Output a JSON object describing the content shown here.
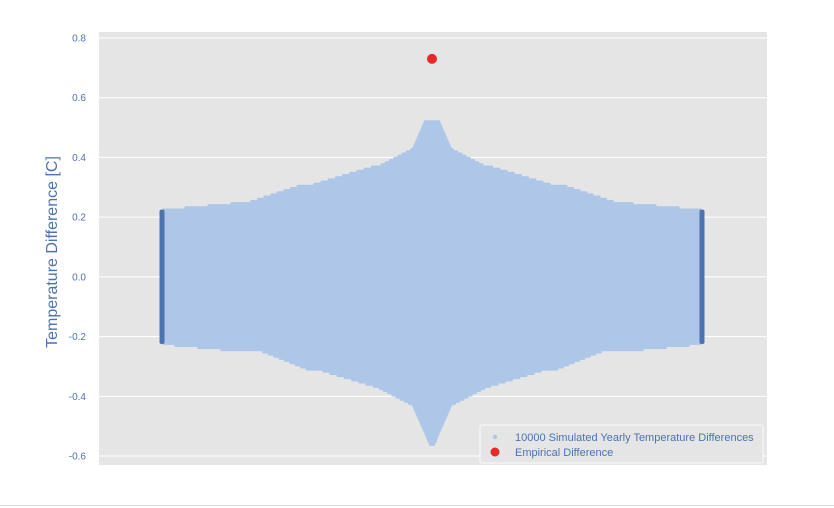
{
  "chart_data": {
    "type": "scatter",
    "title": "",
    "xlabel": "",
    "ylabel": "Temperature Difference [C]",
    "ylim": [
      -0.63,
      0.82
    ],
    "yticks": [
      0.8,
      0.6,
      0.4,
      0.2,
      0.0,
      -0.2,
      -0.4,
      -0.6
    ],
    "ytick_labels": [
      "0.8",
      "0.6",
      "0.4",
      "0.2",
      "0.0",
      "-0.2",
      "-0.4",
      "-0.6"
    ],
    "grid": true,
    "legend_position": "lower-right",
    "series": [
      {
        "name": "10000 Simulated Yearly Temperature Differences",
        "kind": "swarm",
        "count": 10000,
        "y_min": -0.56,
        "y_max": 0.52,
        "color": "#aec7e8",
        "edge_color": "#4c72b0"
      },
      {
        "name": "Empirical Difference",
        "kind": "point",
        "y": [
          0.73
        ],
        "color": "#e8282b"
      }
    ],
    "colors": {
      "background": "#e5e5e5",
      "grid": "#ffffff",
      "tick_text": "#4c72b0"
    }
  }
}
